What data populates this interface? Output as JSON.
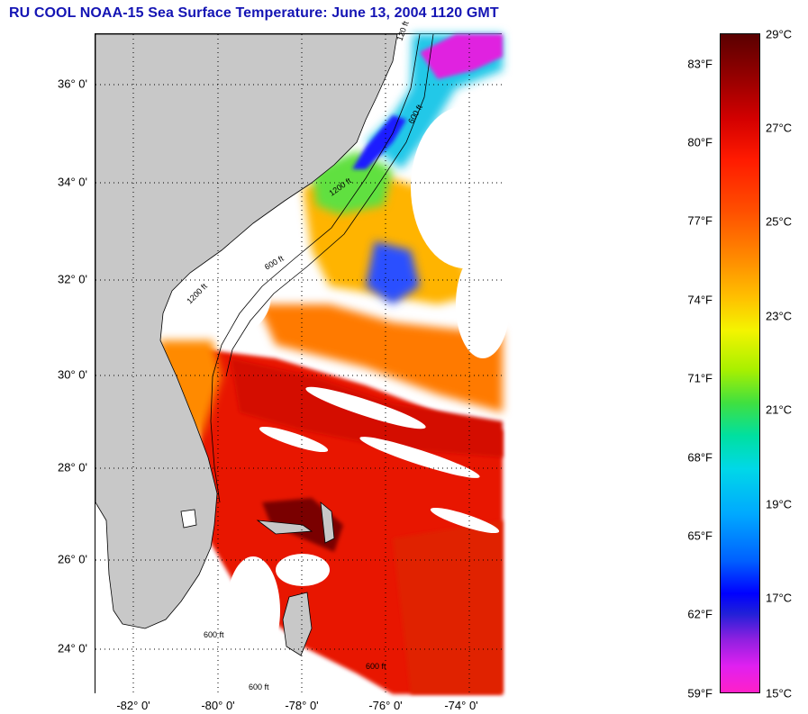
{
  "title": "RU COOL  NOAA-15  Sea Surface Temperature:  June 13, 2004 1120 GMT",
  "colors": {
    "title": "#1414b4",
    "land": "#c8c8c8",
    "cloud": "#ffffff"
  },
  "latitude_labels": [
    "36° 0'",
    "34° 0'",
    "32° 0'",
    "30° 0'",
    "28° 0'",
    "26° 0'",
    "24° 0'"
  ],
  "longitude_labels": [
    "-82° 0'",
    "-80° 0'",
    "-78° 0'",
    "-76° 0'",
    "-74° 0'"
  ],
  "contour_labels": [
    "120 ft",
    "600 ft",
    "1200 ft",
    "600 ft",
    "1200 ft",
    "600 ft",
    "600 ft",
    "600 ft"
  ],
  "colorbar": {
    "fahrenheit": [
      "83°F",
      "80°F",
      "77°F",
      "74°F",
      "71°F",
      "68°F",
      "65°F",
      "62°F",
      "59°F"
    ],
    "celsius": [
      "29°C",
      "27°C",
      "25°C",
      "23°C",
      "21°C",
      "19°C",
      "17°C",
      "15°C"
    ]
  }
}
